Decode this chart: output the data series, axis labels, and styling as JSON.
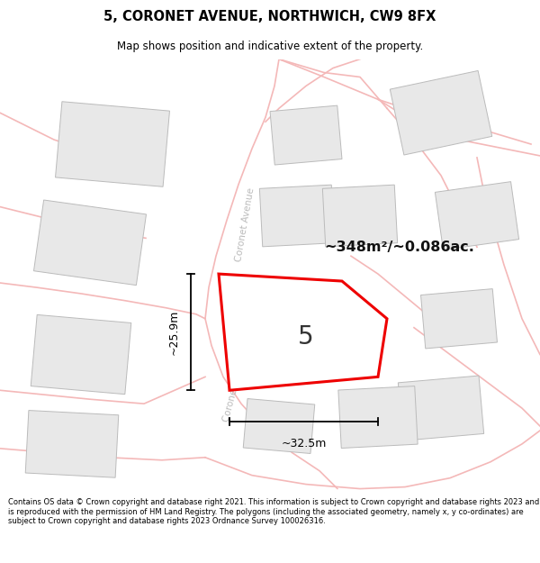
{
  "title": "5, CORONET AVENUE, NORTHWICH, CW9 8FX",
  "subtitle": "Map shows position and indicative extent of the property.",
  "footer": "Contains OS data © Crown copyright and database right 2021. This information is subject to Crown copyright and database rights 2023 and is reproduced with the permission of HM Land Registry. The polygons (including the associated geometry, namely x, y co-ordinates) are subject to Crown copyright and database rights 2023 Ordnance Survey 100026316.",
  "area_text": "~348m²/~0.086ac.",
  "plot_label": "5",
  "dim_h": "~25.9m",
  "dim_w": "~32.5m",
  "road_color": "#f4b8b8",
  "building_fill": "#e8e8e8",
  "building_edge": "#bbbbbb",
  "plot_color": "#ee0000",
  "road_label_color": "#bbbbbb",
  "street_name": "Coronet Avenue",
  "map_bg": "#f7f5f5"
}
